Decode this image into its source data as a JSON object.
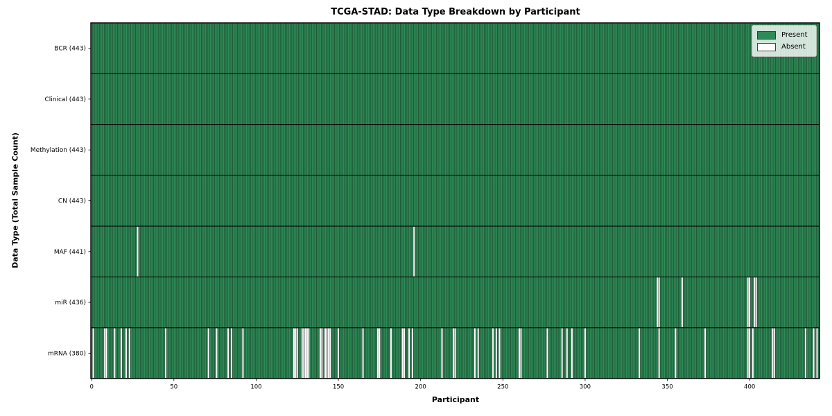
{
  "chart_data": {
    "type": "heatmap",
    "title": "TCGA-STAD: Data Type Breakdown by Participant",
    "xlabel": "Participant",
    "ylabel": "Data Type (Total Sample Count)",
    "n_participants": 443,
    "x_ticks": [
      0,
      50,
      100,
      150,
      200,
      250,
      300,
      350,
      400
    ],
    "grid": false,
    "legend_position": "upper right",
    "legend": [
      {
        "label": "Present",
        "color": "#2e8b57"
      },
      {
        "label": "Absent",
        "color": "#ffffff"
      }
    ],
    "rows": [
      {
        "label": "BCR (443)",
        "name": "BCR",
        "count": 443,
        "missing": []
      },
      {
        "label": "Clinical (443)",
        "name": "Clinical",
        "count": 443,
        "missing": []
      },
      {
        "label": "Methylation (443)",
        "name": "Methylation",
        "count": 443,
        "missing": []
      },
      {
        "label": "CN (443)",
        "name": "CN",
        "count": 443,
        "missing": []
      },
      {
        "label": "MAF (441)",
        "name": "MAF",
        "count": 441,
        "missing": [
          28,
          196
        ]
      },
      {
        "label": "miR (436)",
        "name": "miR",
        "count": 436,
        "missing": [
          344,
          345,
          359,
          399,
          400,
          403,
          404
        ]
      },
      {
        "label": "mRNA (380)",
        "name": "mRNA",
        "count": 380,
        "missing": [
          1,
          8,
          9,
          14,
          18,
          21,
          23,
          45,
          71,
          76,
          83,
          85,
          92,
          123,
          124,
          125,
          128,
          129,
          130,
          131,
          132,
          139,
          140,
          142,
          143,
          144,
          145,
          150,
          165,
          174,
          175,
          182,
          189,
          190,
          193,
          195,
          213,
          220,
          221,
          233,
          235,
          244,
          246,
          248,
          260,
          261,
          277,
          286,
          289,
          292,
          300,
          333,
          345,
          355,
          373,
          399,
          400,
          402,
          414,
          415,
          434,
          439,
          441
        ]
      }
    ],
    "colors": {
      "present": "#2e8b57",
      "present_edge": "#1b4b2f",
      "absent": "#ffffff",
      "absent_edge": "#3a3a3a",
      "separator": "#000000",
      "plot_border": "#000000"
    }
  }
}
